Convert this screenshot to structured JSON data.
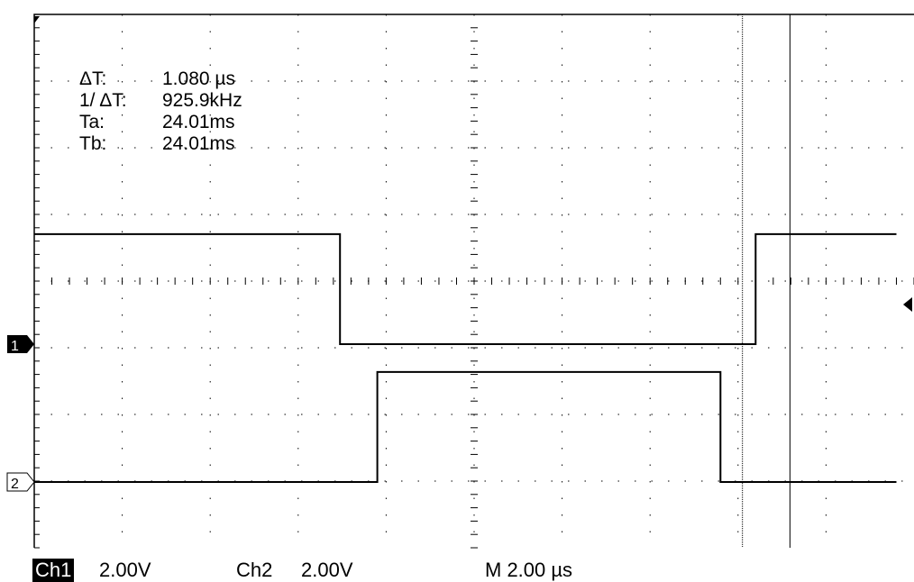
{
  "measurements": {
    "delta_t_label": "ΔT:",
    "delta_t_value": "1.080 µs",
    "inv_delta_t_label": "1/ ΔT:",
    "inv_delta_t_value": "925.9kHz",
    "ta_label": "Ta:",
    "ta_value": "24.01ms",
    "tb_label": "Tb:",
    "tb_value": "24.01ms"
  },
  "footer": {
    "ch1_label": "Ch1",
    "ch1_scale": "2.00V",
    "ch2_label": "Ch2",
    "ch2_scale": "2.00V",
    "timebase": "M 2.00 µs"
  },
  "markers": {
    "ch1": "1",
    "ch2": "2"
  },
  "chart_data": {
    "type": "line",
    "grid": true,
    "x_divisions": 10,
    "y_divisions": 8,
    "volts_per_div": 2.0,
    "time_per_div_us": 2.0,
    "x_unit": "µs",
    "cursors_us": [
      16.1,
      17.18
    ],
    "series": [
      {
        "channel": "Ch1",
        "reference_div": 0,
        "levels_div": [
          [
            0,
            1.65
          ],
          [
            6.95,
            1.65
          ],
          [
            6.95,
            0
          ],
          [
            16.4,
            0
          ],
          [
            16.4,
            1.65
          ],
          [
            19.6,
            1.65
          ]
        ]
      },
      {
        "channel": "Ch2",
        "reference_div": 0,
        "levels_div": [
          [
            0,
            0
          ],
          [
            7.0,
            0
          ],
          [
            7.8,
            0
          ],
          [
            7.8,
            1.65
          ],
          [
            15.6,
            1.65
          ],
          [
            15.6,
            0
          ],
          [
            19.6,
            0
          ]
        ]
      }
    ]
  }
}
